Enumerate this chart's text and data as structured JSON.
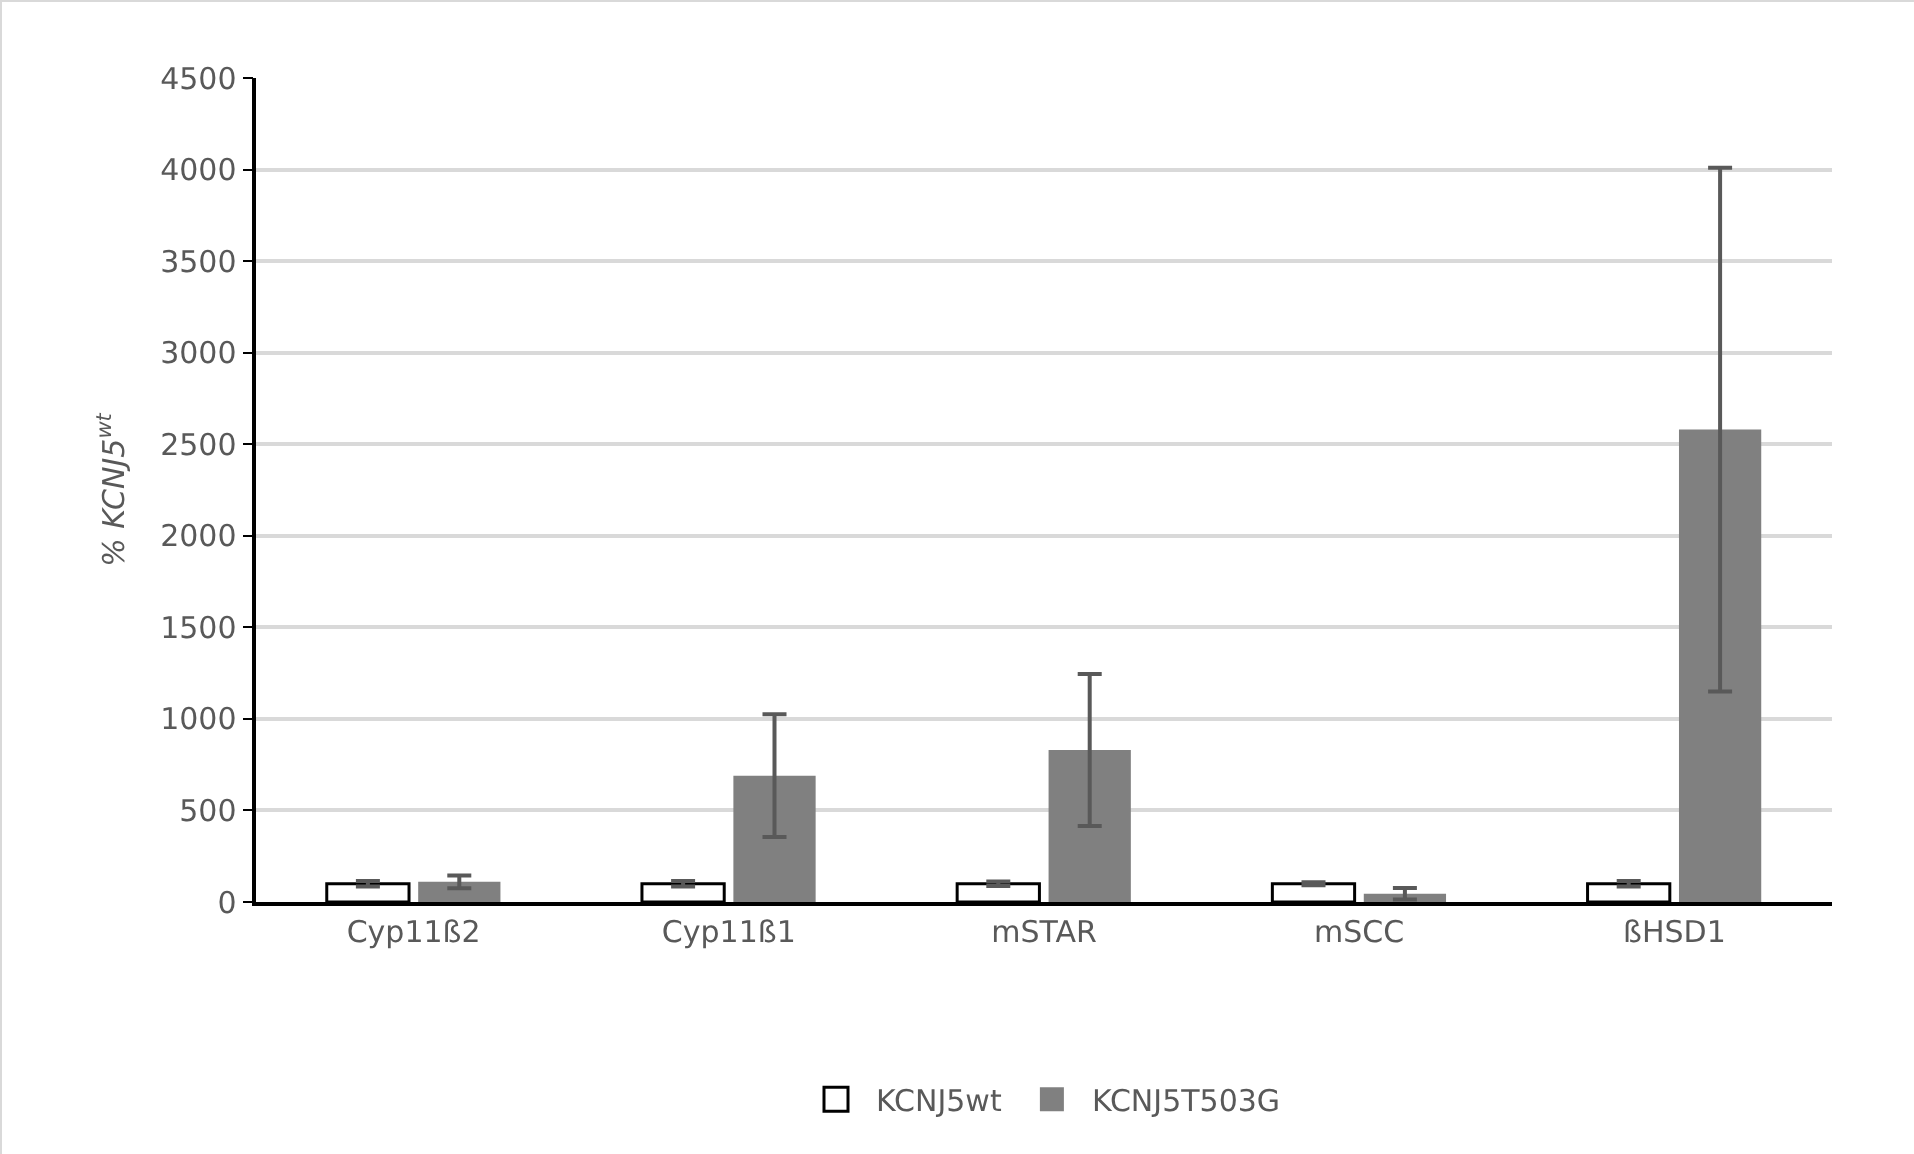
{
  "chart_data": {
    "type": "bar",
    "ylabel": "% KCNJ5$^{wt}$",
    "categories": [
      "Cyp11ß2",
      "Cyp11ß1",
      "mSTAR",
      "mSCC",
      "ßHSD1"
    ],
    "series": [
      {
        "name": "KCNJ5wt",
        "color": "#ffffff",
        "values": [
          100,
          100,
          100,
          100,
          100
        ],
        "errors": [
          15,
          15,
          12,
          8,
          15
        ]
      },
      {
        "name": "KCNJ5T503G",
        "color": "#808080",
        "values": [
          110,
          690,
          830,
          45,
          2580
        ],
        "errors": [
          35,
          335,
          415,
          32,
          1430
        ]
      }
    ],
    "ylim": [
      0,
      4500
    ],
    "yticks": [
      0,
      500,
      1000,
      1500,
      2000,
      2500,
      3000,
      3500,
      4000,
      4500
    ],
    "grid": "y",
    "legend": "bottom"
  }
}
